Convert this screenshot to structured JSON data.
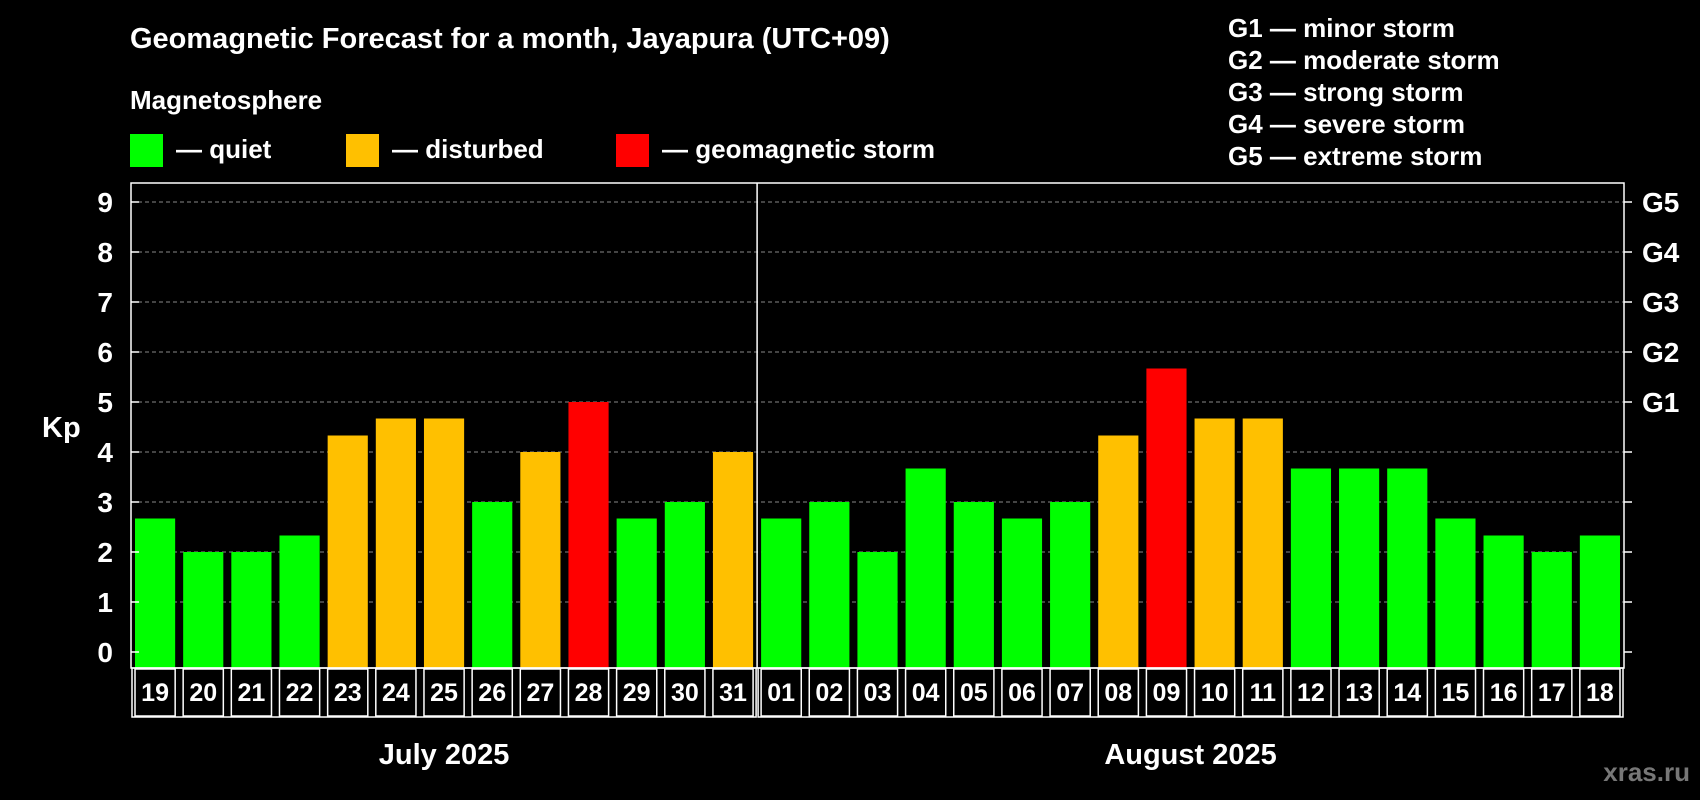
{
  "chart_data": {
    "type": "bar",
    "title": "Geomagnetic Forecast for a month, Jayapura (UTC+09)",
    "legend_title": "Magnetosphere",
    "legend": [
      {
        "label": "— quiet",
        "color": "#00ff00"
      },
      {
        "label": "— disturbed",
        "color": "#ffc000"
      },
      {
        "label": "— geomagnetic storm",
        "color": "#ff0000"
      }
    ],
    "storm_scale": [
      "G1 — minor storm",
      "G2 — moderate storm",
      "G3 — strong storm",
      "G4 — severe storm",
      "G5 — extreme storm"
    ],
    "ylabel": "Kp",
    "ylim": [
      0,
      9
    ],
    "yticks": [
      "0",
      "1",
      "2",
      "3",
      "4",
      "5",
      "6",
      "7",
      "8",
      "9"
    ],
    "right_ticks": [
      {
        "value": 5,
        "label": "G1"
      },
      {
        "value": 6,
        "label": "G2"
      },
      {
        "value": 7,
        "label": "G3"
      },
      {
        "value": 8,
        "label": "G4"
      },
      {
        "value": 9,
        "label": "G5"
      }
    ],
    "grid": true,
    "months": [
      {
        "label": "July 2025",
        "start": 0,
        "count": 13
      },
      {
        "label": "August 2025",
        "start": 13,
        "count": 18
      }
    ],
    "categories": [
      "19",
      "20",
      "21",
      "22",
      "23",
      "24",
      "25",
      "26",
      "27",
      "28",
      "29",
      "30",
      "31",
      "01",
      "02",
      "03",
      "04",
      "05",
      "06",
      "07",
      "08",
      "09",
      "10",
      "11",
      "12",
      "13",
      "14",
      "15",
      "16",
      "17",
      "18"
    ],
    "values": [
      2.67,
      2.0,
      2.0,
      2.33,
      4.33,
      4.67,
      4.67,
      3.0,
      4.0,
      5.0,
      2.67,
      3.0,
      4.0,
      2.67,
      3.0,
      2.0,
      3.67,
      3.0,
      2.67,
      3.0,
      4.33,
      5.67,
      4.67,
      4.67,
      3.67,
      3.67,
      3.67,
      2.67,
      2.33,
      2.0,
      2.33
    ],
    "levels": [
      "quiet",
      "quiet",
      "quiet",
      "quiet",
      "disturbed",
      "disturbed",
      "disturbed",
      "quiet",
      "disturbed",
      "storm",
      "quiet",
      "quiet",
      "disturbed",
      "quiet",
      "quiet",
      "quiet",
      "quiet",
      "quiet",
      "quiet",
      "quiet",
      "disturbed",
      "storm",
      "disturbed",
      "disturbed",
      "quiet",
      "quiet",
      "quiet",
      "quiet",
      "quiet",
      "quiet",
      "quiet"
    ],
    "level_colors": {
      "quiet": "#00ff00",
      "disturbed": "#ffc000",
      "storm": "#ff0000"
    },
    "watermark": "xras.ru"
  }
}
